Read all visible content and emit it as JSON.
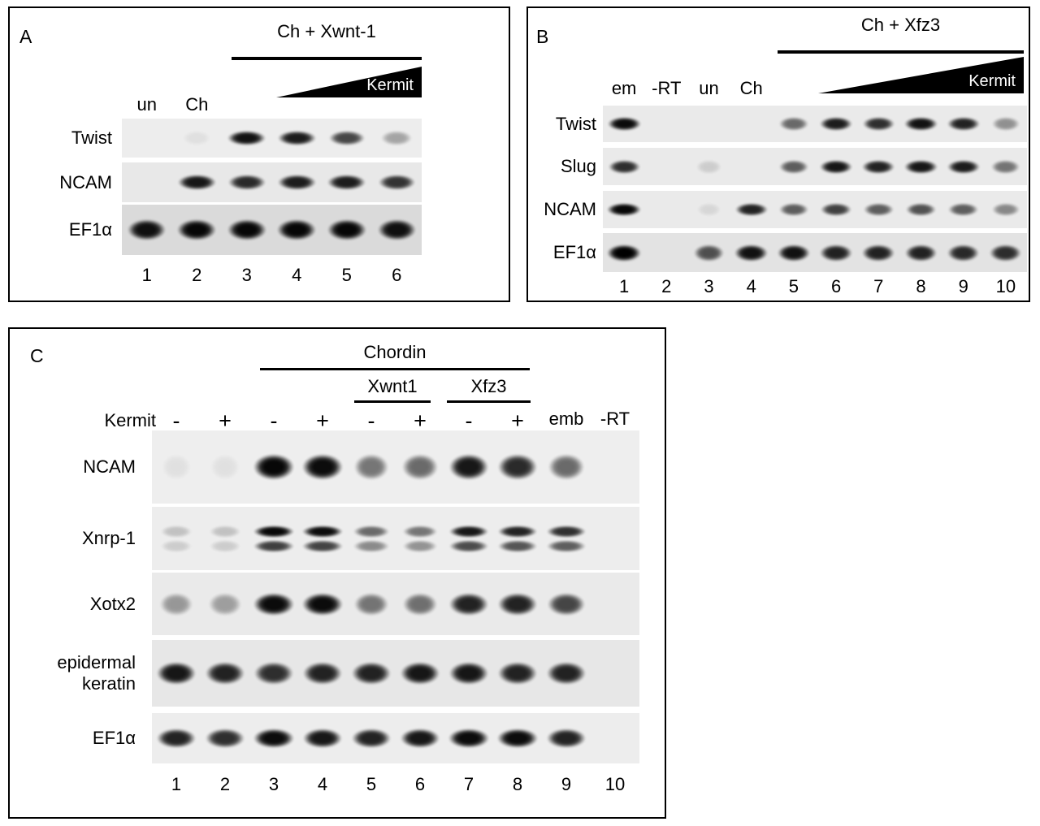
{
  "figure": {
    "type": "gel_rt_pcr_figure",
    "panels": {
      "A": {
        "letter": "A",
        "bracket_label": "Ch + Xwnt-1",
        "wedge_label": "Kermit",
        "lane_top_labels": [
          "un",
          "Ch"
        ],
        "rows": [
          {
            "label": "Twist",
            "band_intensities": [
              0,
              0.05,
              0.92,
              0.88,
              0.7,
              0.3
            ]
          },
          {
            "label": "NCAM",
            "band_intensities": [
              0,
              0.9,
              0.82,
              0.88,
              0.88,
              0.78
            ]
          },
          {
            "label": "EF1α",
            "band_intensities": [
              0.93,
              0.97,
              0.97,
              0.97,
              0.97,
              0.93
            ]
          }
        ],
        "lane_numbers": [
          "1",
          "2",
          "3",
          "4",
          "5",
          "6"
        ]
      },
      "B": {
        "letter": "B",
        "bracket_label": "Ch + Xfz3",
        "wedge_label": "Kermit",
        "lane_top_labels": [
          "em",
          "-RT",
          "un",
          "Ch"
        ],
        "rows": [
          {
            "label": "Twist",
            "band_intensities": [
              0.95,
              0,
              0,
              0,
              0.55,
              0.88,
              0.8,
              0.92,
              0.85,
              0.38
            ]
          },
          {
            "label": "Slug",
            "band_intensities": [
              0.8,
              0,
              0.12,
              0,
              0.6,
              0.9,
              0.85,
              0.9,
              0.88,
              0.5
            ]
          },
          {
            "label": "NCAM",
            "band_intensities": [
              0.97,
              0,
              0.08,
              0.85,
              0.6,
              0.72,
              0.6,
              0.65,
              0.6,
              0.42
            ]
          },
          {
            "label": "EF1α",
            "band_intensities": [
              1,
              0,
              0.65,
              0.92,
              0.92,
              0.85,
              0.85,
              0.85,
              0.82,
              0.8
            ]
          }
        ],
        "lane_numbers": [
          "1",
          "2",
          "3",
          "4",
          "5",
          "6",
          "7",
          "8",
          "9",
          "10"
        ]
      },
      "C": {
        "letter": "C",
        "bracket_label": "Chordin",
        "sub_brackets": [
          {
            "label": "Xwnt1"
          },
          {
            "label": "Xfz3"
          }
        ],
        "condition_row_label": "Kermit",
        "condition_values": [
          "-",
          "+",
          "-",
          "+",
          "-",
          "+",
          "-",
          "+",
          "emb",
          "-RT"
        ],
        "rows": [
          {
            "label": "NCAM",
            "band_intensities": [
              0.05,
              0.05,
              0.97,
              0.95,
              0.5,
              0.55,
              0.9,
              0.82,
              0.55,
              0
            ]
          },
          {
            "label": "Xnrp-1",
            "band_intensities": [
              0.18,
              0.18,
              0.97,
              0.95,
              0.55,
              0.5,
              0.9,
              0.85,
              0.8,
              0
            ]
          },
          {
            "label": "Xotx2",
            "band_intensities": [
              0.35,
              0.32,
              0.95,
              0.95,
              0.5,
              0.52,
              0.85,
              0.85,
              0.7,
              0
            ]
          },
          {
            "label": "epidermal keratin",
            "band_intensities": [
              0.9,
              0.85,
              0.8,
              0.85,
              0.85,
              0.9,
              0.9,
              0.85,
              0.85,
              0
            ]
          },
          {
            "label": "EF1α",
            "band_intensities": [
              0.85,
              0.8,
              0.95,
              0.9,
              0.85,
              0.9,
              0.95,
              0.95,
              0.85,
              0
            ]
          }
        ],
        "lane_numbers": [
          "1",
          "2",
          "3",
          "4",
          "5",
          "6",
          "7",
          "8",
          "9",
          "10"
        ]
      }
    }
  }
}
